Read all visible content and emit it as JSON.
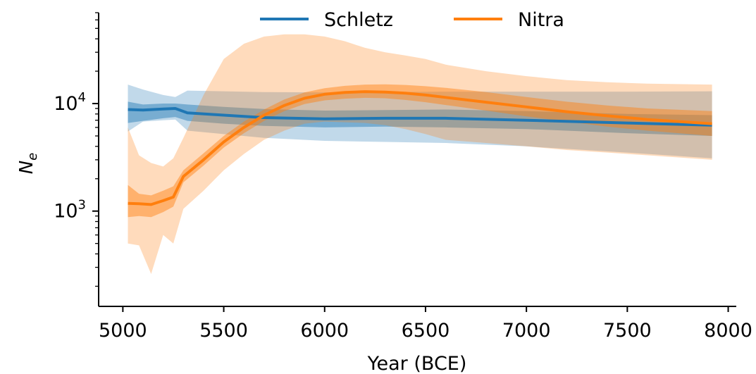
{
  "chart_data": {
    "type": "line",
    "title": "",
    "xlabel": "Year (BCE)",
    "ylabel_main": "N",
    "ylabel_sub": "e",
    "xscale": "linear",
    "yscale": "log",
    "xlim": [
      4880,
      8040
    ],
    "ylim": [
      130,
      70000
    ],
    "xticks": [
      5000,
      5500,
      6000,
      6500,
      7000,
      7500,
      8000
    ],
    "yticks": [
      {
        "value": 1000,
        "base": "10",
        "exp": "3"
      },
      {
        "value": 10000,
        "base": "10",
        "exp": "4"
      }
    ],
    "grid": false,
    "legend_position": "top-center",
    "series": [
      {
        "name": "Schletz",
        "color": "#1f77b4",
        "x": [
          5025,
          5100,
          5200,
          5260,
          5320,
          5500,
          5700,
          6000,
          6300,
          6600,
          7000,
          7500,
          7920
        ],
        "y": [
          8800,
          8700,
          8900,
          9000,
          8200,
          7800,
          7400,
          7200,
          7300,
          7300,
          7000,
          6600,
          6300
        ],
        "inner": {
          "lower": [
            6600,
            6900,
            7300,
            7500,
            6900,
            6500,
            6200,
            6000,
            6100,
            6000,
            5800,
            5300,
            5000
          ],
          "upper": [
            10400,
            9800,
            10000,
            10000,
            9800,
            9300,
            8900,
            8600,
            8700,
            8800,
            8500,
            8000,
            7800
          ]
        },
        "outer": {
          "lower": [
            5500,
            6800,
            7000,
            7100,
            5600,
            5200,
            4800,
            4500,
            4400,
            4300,
            4000,
            3500,
            3100
          ],
          "upper": [
            15000,
            13500,
            12000,
            11500,
            13200,
            13000,
            12800,
            12700,
            12800,
            12900,
            12900,
            12900,
            13000
          ]
        }
      },
      {
        "name": "Nitra",
        "color": "#ff7f0e",
        "x": [
          5025,
          5080,
          5140,
          5200,
          5250,
          5300,
          5400,
          5500,
          5600,
          5700,
          5800,
          5900,
          6000,
          6100,
          6200,
          6300,
          6400,
          6500,
          6600,
          6800,
          7000,
          7200,
          7400,
          7600,
          7920
        ],
        "y": [
          1180,
          1170,
          1150,
          1250,
          1350,
          2100,
          3000,
          4400,
          6000,
          7800,
          9600,
          11200,
          12200,
          12700,
          12900,
          12800,
          12500,
          12000,
          11400,
          10300,
          9300,
          8400,
          7700,
          7100,
          6500
        ],
        "inner": {
          "lower": [
            880,
            900,
            880,
            980,
            1100,
            1850,
            2650,
            3900,
            5300,
            6900,
            8500,
            9900,
            10700,
            11100,
            11300,
            11200,
            10800,
            10300,
            9700,
            8600,
            7600,
            6800,
            6100,
            5600,
            5000
          ],
          "upper": [
            1750,
            1450,
            1400,
            1550,
            1700,
            2400,
            3450,
            5000,
            6800,
            8800,
            10900,
            12700,
            13900,
            14600,
            15000,
            15100,
            14900,
            14500,
            14000,
            12800,
            11500,
            10400,
            9600,
            9000,
            8500
          ]
        },
        "outer": {
          "lower": [
            500,
            480,
            260,
            600,
            500,
            1050,
            1550,
            2400,
            3400,
            4600,
            5600,
            6500,
            6800,
            6700,
            6600,
            6300,
            5800,
            5200,
            4600,
            4300,
            4000,
            3700,
            3500,
            3300,
            3000
          ],
          "upper": [
            6000,
            3300,
            2800,
            2600,
            3100,
            4800,
            12000,
            26000,
            36000,
            42000,
            44000,
            44000,
            42000,
            38000,
            33000,
            30000,
            28000,
            26000,
            23000,
            20000,
            18000,
            16500,
            15800,
            15300,
            15000
          ]
        }
      }
    ]
  }
}
